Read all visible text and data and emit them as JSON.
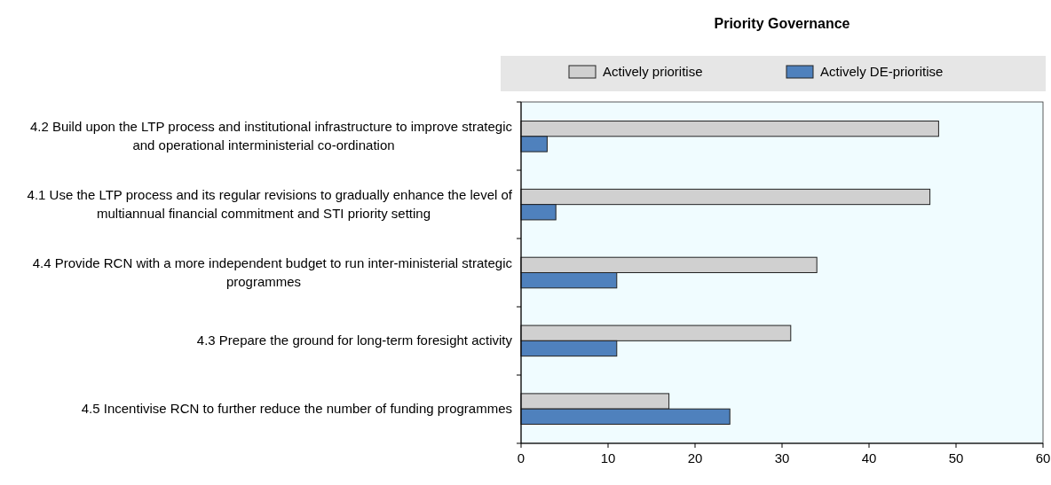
{
  "chart_data": {
    "type": "bar",
    "orientation": "horizontal",
    "title": "Priority Governance",
    "categories": [
      "4.2 Build upon the LTP process and institutional infrastructure to improve strategic and operational interministerial co-ordination",
      "4.1 Use the LTP process and its regular revisions to gradually enhance the level of multiannual financial commitment and STI priority setting",
      "4.4 Provide RCN with a more independent budget to run inter-ministerial strategic programmes",
      "4.3 Prepare the ground for long-term foresight activity",
      "4.5 Incentivise RCN to further reduce the number of funding programmes"
    ],
    "series": [
      {
        "name": "Actively prioritise",
        "color": "#d0d0d0",
        "values": [
          48,
          47,
          34,
          31,
          17
        ]
      },
      {
        "name": "Actively DE-prioritise",
        "color": "#4f81bd",
        "values": [
          3,
          4,
          11,
          11,
          24
        ]
      }
    ],
    "xlim": [
      0,
      60
    ],
    "xticks": [
      0,
      10,
      20,
      30,
      40,
      50,
      60
    ],
    "legend": "top",
    "grid": false
  }
}
